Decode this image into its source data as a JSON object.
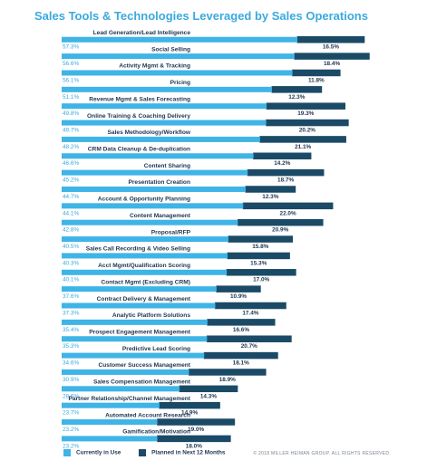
{
  "chart_data": {
    "type": "bar",
    "title": "Sales Tools & Technologies Leveraged by Sales Operations",
    "colors": {
      "current": "#3fb4e6",
      "planned": "#1b4a66",
      "title": "#3aa9df"
    },
    "categories": [
      "Lead Generation/Lead Intelligence",
      "Social Selling",
      "Activity Mgmt & Tracking",
      "Pricing",
      "Revenue Mgmt & Sales Forecasting",
      "Online Training & Coaching Delivery",
      "Sales Methodology/Workflow",
      "CRM Data Cleanup & De-duplication",
      "Content Sharing",
      "Presentation Creation",
      "Account & Opportunity Planning",
      "Content Management",
      "Proposal/RFP",
      "Sales Call Recording & Video Selling",
      "Acct Mgmt/Qualification Scoring",
      "Contact Mgmt (Excluding CRM)",
      "Contract Delivery & Management",
      "Analytic Platform Solutions",
      "Prospect Engagement Management",
      "Predictive Lead Scoring",
      "Customer Success Management",
      "Sales Compensation Management",
      "Partner Relationship/Channel Management",
      "Automated Account Research",
      "Gamification/Motivation"
    ],
    "series": [
      {
        "name": "Currently in Use",
        "values": [
          57.3,
          56.6,
          56.1,
          51.1,
          49.8,
          49.7,
          48.2,
          46.6,
          45.2,
          44.7,
          44.1,
          42.8,
          40.5,
          40.3,
          40.1,
          37.6,
          37.3,
          35.4,
          35.3,
          34.6,
          30.9,
          28.6,
          23.7,
          23.2,
          23.2
        ],
        "labels": [
          "57.3%",
          "56.6%",
          "56.1%",
          "51.1%",
          "49.8%",
          "49.7%",
          "48.2%",
          "46.6%",
          "45.2%",
          "44.7%",
          "44.1%",
          "42.8%",
          "40.5%",
          "40.3%",
          "40.1%",
          "37.6%",
          "37.3%",
          "35.4%",
          "35.3%",
          "34.6%",
          "30.9%",
          "28.6%",
          "23.7%",
          "23.2%",
          "23.2%"
        ]
      },
      {
        "name": "Planned in Next 12 Months",
        "values": [
          16.5,
          18.4,
          11.8,
          12.3,
          19.3,
          20.2,
          21.1,
          14.2,
          18.7,
          12.3,
          22.0,
          20.9,
          15.8,
          15.3,
          17.0,
          10.9,
          17.4,
          16.6,
          20.7,
          18.1,
          18.9,
          14.3,
          14.9,
          19.0,
          18.0
        ],
        "labels": [
          "16.5%",
          "18.4%",
          "11.8%",
          "12.3%",
          "19.3%",
          "20.2%",
          "21.1%",
          "14.2%",
          "18.7%",
          "12.3%",
          "22.0%",
          "20.9%",
          "15.8%",
          "15.3%",
          "17.0%",
          "10.9%",
          "17.4%",
          "16.6%",
          "20.7%",
          "18.1%",
          "18.9%",
          "14.3%",
          "14.9%",
          "19.0%",
          "18.0%"
        ]
      }
    ],
    "stacked": true,
    "legend": "bottom-left",
    "grid": false
  },
  "footer": {
    "copyright": "© 2018 MILLER HEIMAN GROUP. ALL RIGHTS RESERVED."
  }
}
